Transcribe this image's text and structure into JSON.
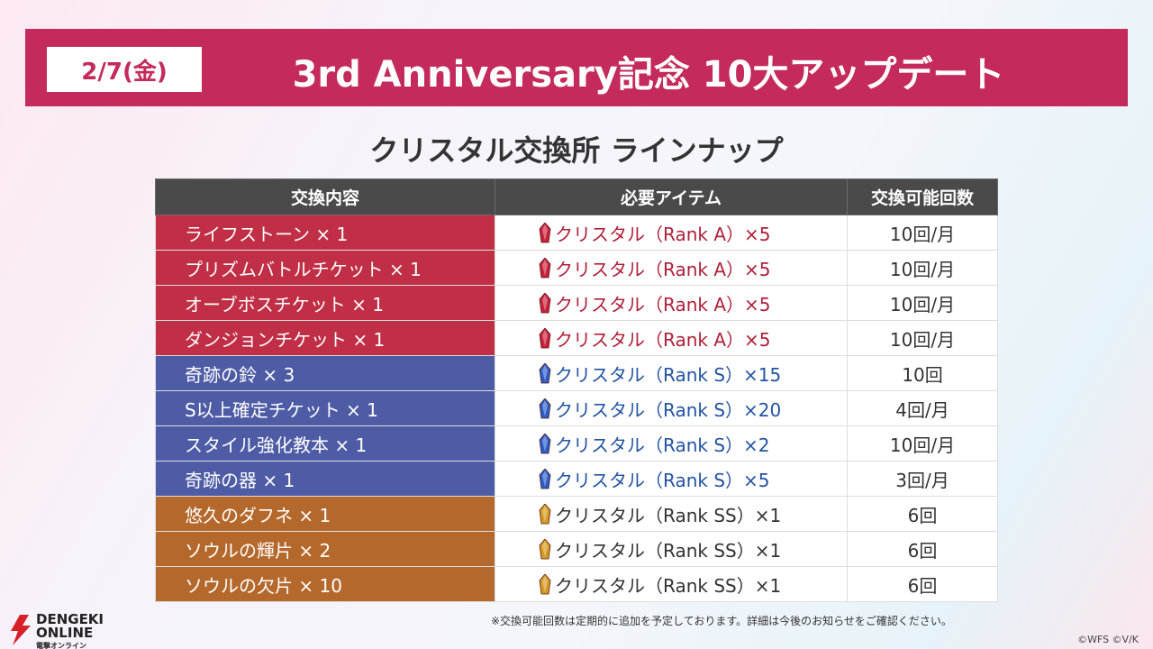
{
  "header": {
    "date": "2/7(金)",
    "title": "3rd Anniversary記念 10大アップデート"
  },
  "subtitle": "クリスタル交換所 ラインナップ",
  "table": {
    "columns": [
      "交換内容",
      "必要アイテム",
      "交換可能回数"
    ],
    "rows": [
      [
        "ライフストーン × 1",
        "クリスタル（Rank A）×5",
        "10回/月"
      ],
      [
        "プリズムバトルチケット × 1",
        "クリスタル（Rank A）×5",
        "10回/月"
      ],
      [
        "オーブボスチケット × 1",
        "クリスタル（Rank A）×5",
        "10回/月"
      ],
      [
        "ダンジョンチケット × 1",
        "クリスタル（Rank A）×5",
        "10回/月"
      ],
      [
        "奇跡の鈴 × 3",
        "クリスタル（Rank S）×15",
        "10回"
      ],
      [
        "S以上確定チケット × 1",
        "クリスタル（Rank S）×20",
        "4回/月"
      ],
      [
        "スタイル強化教本 × 1",
        "クリスタル（Rank S）×2",
        "10回/月"
      ],
      [
        "奇跡の器 × 1",
        "クリスタル（Rank S）×5",
        "3回/月"
      ],
      [
        "悠久のダフネ × 1",
        "クリスタル（Rank SS）×1",
        "6回"
      ],
      [
        "ソウルの輝片 × 2",
        "クリスタル（Rank SS）×1",
        "6回"
      ],
      [
        "ソウルの欠片 × 10",
        "クリスタル（Rank SS）×1",
        "6回"
      ]
    ]
  },
  "footnote": "※交換可能回数は定期的に追加を予定しております。詳細は今後のお知らせをご確認ください。",
  "logo": {
    "name": "DENGEKI",
    "name2": "ONLINE",
    "kana": "電撃オンライン"
  },
  "copyright": "©WFS ©V/K"
}
